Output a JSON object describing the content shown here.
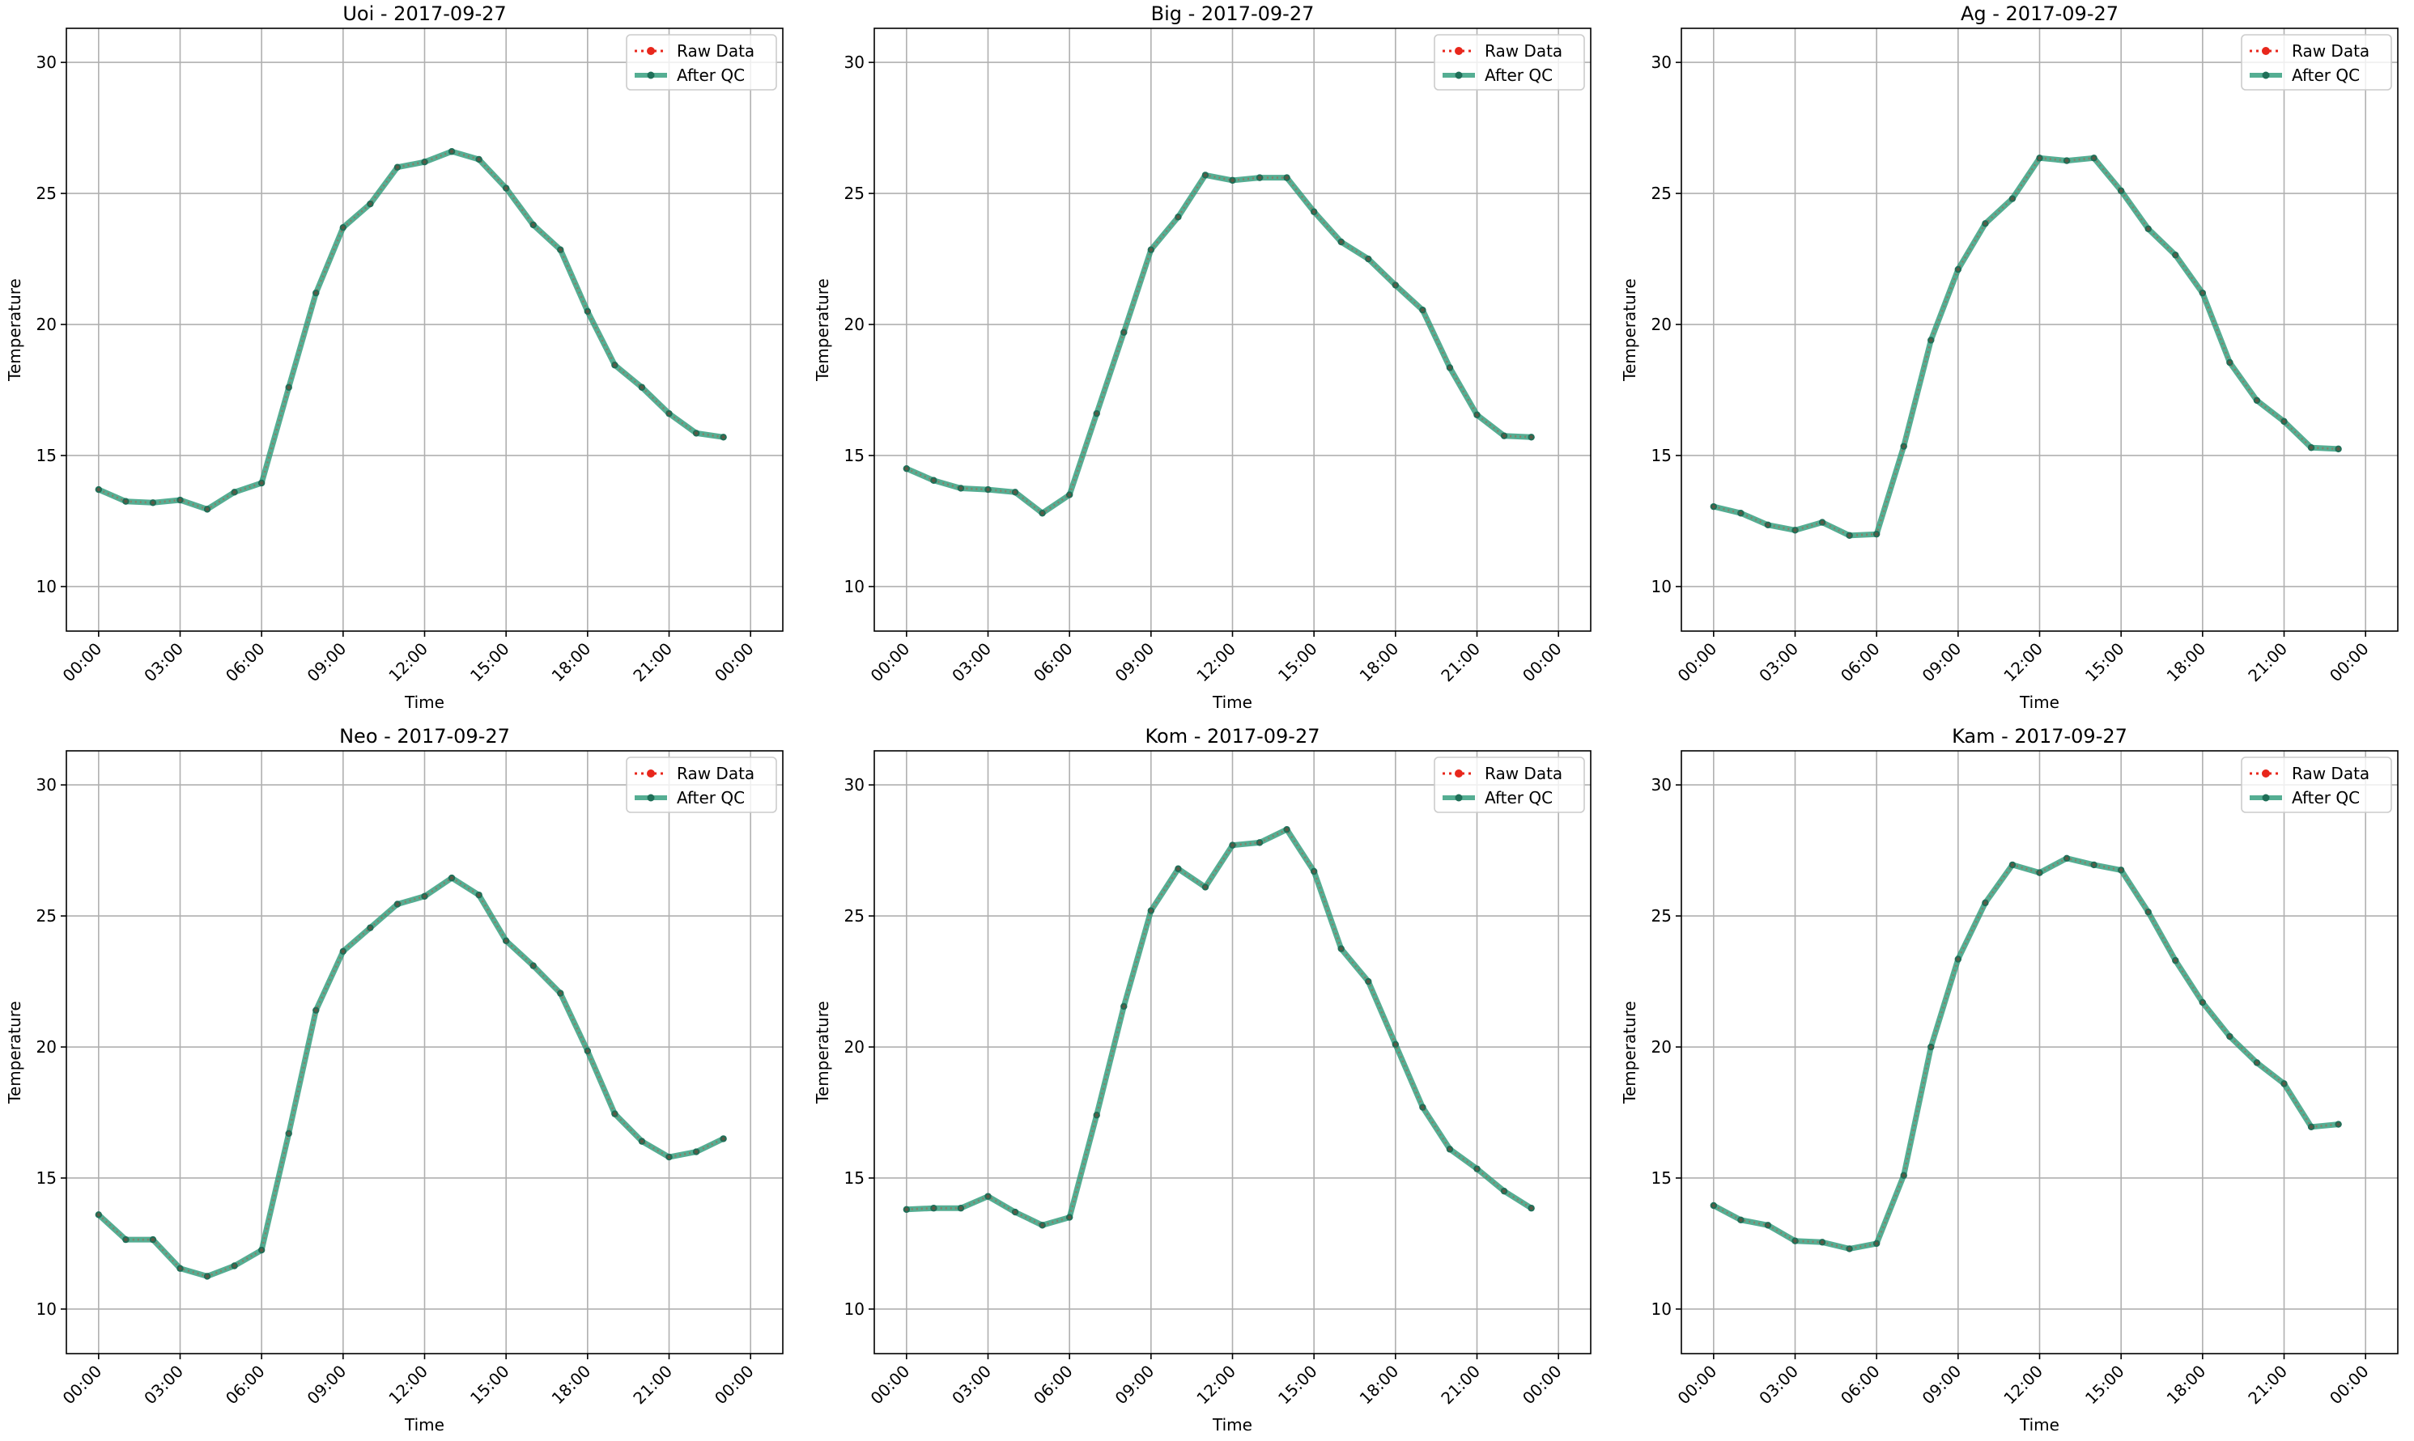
{
  "colors": {
    "raw": "#e8271c",
    "after_qc": "#2a9a78",
    "after_qc_marker": "#1f6f58",
    "grid": "#b0b0b0"
  },
  "chart_data": [
    {
      "type": "line",
      "title": "Uoi - 2017-09-27",
      "xlabel": "Time",
      "ylabel": "Temperature",
      "x_ticks": [
        "00:00",
        "03:00",
        "06:00",
        "09:00",
        "12:00",
        "15:00",
        "18:00",
        "21:00",
        "00:00"
      ],
      "y_ticks": [
        10,
        15,
        20,
        25,
        30
      ],
      "ylim": [
        8.3,
        31.3
      ],
      "grid": true,
      "legend_position": "top-right",
      "x": [
        "00:00",
        "01:00",
        "02:00",
        "03:00",
        "04:00",
        "05:00",
        "06:00",
        "07:00",
        "08:00",
        "09:00",
        "10:00",
        "11:00",
        "12:00",
        "13:00",
        "14:00",
        "15:00",
        "16:00",
        "17:00",
        "18:00",
        "19:00",
        "20:00",
        "21:00",
        "22:00",
        "23:00"
      ],
      "series": [
        {
          "name": "Raw Data",
          "values": [
            13.7,
            13.25,
            13.2,
            13.3,
            12.95,
            13.6,
            13.95,
            17.6,
            21.2,
            23.7,
            24.6,
            26.0,
            26.2,
            26.6,
            26.3,
            25.2,
            23.8,
            22.85,
            20.5,
            18.45,
            17.6,
            16.6,
            15.85,
            15.7
          ]
        },
        {
          "name": "After QC",
          "values": [
            13.7,
            13.25,
            13.2,
            13.3,
            12.95,
            13.6,
            13.95,
            17.6,
            21.2,
            23.7,
            24.6,
            26.0,
            26.2,
            26.6,
            26.3,
            25.2,
            23.8,
            22.85,
            20.5,
            18.45,
            17.6,
            16.6,
            15.85,
            15.7
          ]
        }
      ]
    },
    {
      "type": "line",
      "title": "Big - 2017-09-27",
      "xlabel": "Time",
      "ylabel": "Temperature",
      "x_ticks": [
        "00:00",
        "03:00",
        "06:00",
        "09:00",
        "12:00",
        "15:00",
        "18:00",
        "21:00",
        "00:00"
      ],
      "y_ticks": [
        10,
        15,
        20,
        25,
        30
      ],
      "ylim": [
        8.3,
        31.3
      ],
      "grid": true,
      "legend_position": "top-right",
      "x": [
        "00:00",
        "01:00",
        "02:00",
        "03:00",
        "04:00",
        "05:00",
        "06:00",
        "07:00",
        "08:00",
        "09:00",
        "10:00",
        "11:00",
        "12:00",
        "13:00",
        "14:00",
        "15:00",
        "16:00",
        "17:00",
        "18:00",
        "19:00",
        "20:00",
        "21:00",
        "22:00",
        "23:00"
      ],
      "series": [
        {
          "name": "Raw Data",
          "values": [
            14.5,
            14.05,
            13.75,
            13.7,
            13.6,
            12.8,
            13.5,
            16.6,
            19.7,
            22.85,
            24.1,
            25.7,
            25.5,
            25.6,
            25.6,
            24.3,
            23.15,
            22.5,
            21.5,
            20.55,
            18.35,
            16.55,
            15.75,
            15.7
          ]
        },
        {
          "name": "After QC",
          "values": [
            14.5,
            14.05,
            13.75,
            13.7,
            13.6,
            12.8,
            13.5,
            16.6,
            19.7,
            22.85,
            24.1,
            25.7,
            25.5,
            25.6,
            25.6,
            24.3,
            23.15,
            22.5,
            21.5,
            20.55,
            18.35,
            16.55,
            15.75,
            15.7
          ]
        }
      ]
    },
    {
      "type": "line",
      "title": "Ag - 2017-09-27",
      "xlabel": "Time",
      "ylabel": "Temperature",
      "x_ticks": [
        "00:00",
        "03:00",
        "06:00",
        "09:00",
        "12:00",
        "15:00",
        "18:00",
        "21:00",
        "00:00"
      ],
      "y_ticks": [
        10,
        15,
        20,
        25,
        30
      ],
      "ylim": [
        8.3,
        31.3
      ],
      "grid": true,
      "legend_position": "top-right",
      "x": [
        "00:00",
        "01:00",
        "02:00",
        "03:00",
        "04:00",
        "05:00",
        "06:00",
        "07:00",
        "08:00",
        "09:00",
        "10:00",
        "11:00",
        "12:00",
        "13:00",
        "14:00",
        "15:00",
        "16:00",
        "17:00",
        "18:00",
        "19:00",
        "20:00",
        "21:00",
        "22:00",
        "23:00"
      ],
      "series": [
        {
          "name": "Raw Data",
          "values": [
            13.05,
            12.8,
            12.35,
            12.15,
            12.45,
            11.95,
            12.0,
            15.35,
            19.4,
            22.1,
            23.85,
            24.8,
            26.35,
            26.25,
            26.35,
            25.1,
            23.65,
            22.65,
            21.2,
            18.55,
            17.1,
            16.3,
            15.3,
            15.25
          ]
        },
        {
          "name": "After QC",
          "values": [
            13.05,
            12.8,
            12.35,
            12.15,
            12.45,
            11.95,
            12.0,
            15.35,
            19.4,
            22.1,
            23.85,
            24.8,
            26.35,
            26.25,
            26.35,
            25.1,
            23.65,
            22.65,
            21.2,
            18.55,
            17.1,
            16.3,
            15.3,
            15.25
          ]
        }
      ]
    },
    {
      "type": "line",
      "title": "Neo - 2017-09-27",
      "xlabel": "Time",
      "ylabel": "Temperature",
      "x_ticks": [
        "00:00",
        "03:00",
        "06:00",
        "09:00",
        "12:00",
        "15:00",
        "18:00",
        "21:00",
        "00:00"
      ],
      "y_ticks": [
        10,
        15,
        20,
        25,
        30
      ],
      "ylim": [
        8.3,
        31.3
      ],
      "grid": true,
      "legend_position": "top-right",
      "x": [
        "00:00",
        "01:00",
        "02:00",
        "03:00",
        "04:00",
        "05:00",
        "06:00",
        "07:00",
        "08:00",
        "09:00",
        "10:00",
        "11:00",
        "12:00",
        "13:00",
        "14:00",
        "15:00",
        "16:00",
        "17:00",
        "18:00",
        "19:00",
        "20:00",
        "21:00",
        "22:00",
        "23:00"
      ],
      "series": [
        {
          "name": "Raw Data",
          "values": [
            13.6,
            12.65,
            12.65,
            11.55,
            11.25,
            11.65,
            12.25,
            16.7,
            21.4,
            23.65,
            24.55,
            25.45,
            25.75,
            26.45,
            25.8,
            24.05,
            23.1,
            22.05,
            19.85,
            17.45,
            16.4,
            15.8,
            16.0,
            16.5
          ]
        },
        {
          "name": "After QC",
          "values": [
            13.6,
            12.65,
            12.65,
            11.55,
            11.25,
            11.65,
            12.25,
            16.7,
            21.4,
            23.65,
            24.55,
            25.45,
            25.75,
            26.45,
            25.8,
            24.05,
            23.1,
            22.05,
            19.85,
            17.45,
            16.4,
            15.8,
            16.0,
            16.5
          ]
        }
      ]
    },
    {
      "type": "line",
      "title": "Kom - 2017-09-27",
      "xlabel": "Time",
      "ylabel": "Temperature",
      "x_ticks": [
        "00:00",
        "03:00",
        "06:00",
        "09:00",
        "12:00",
        "15:00",
        "18:00",
        "21:00",
        "00:00"
      ],
      "y_ticks": [
        10,
        15,
        20,
        25,
        30
      ],
      "ylim": [
        8.3,
        31.3
      ],
      "grid": true,
      "legend_position": "top-right",
      "x": [
        "00:00",
        "01:00",
        "02:00",
        "03:00",
        "04:00",
        "05:00",
        "06:00",
        "07:00",
        "08:00",
        "09:00",
        "10:00",
        "11:00",
        "12:00",
        "13:00",
        "14:00",
        "15:00",
        "16:00",
        "17:00",
        "18:00",
        "19:00",
        "20:00",
        "21:00",
        "22:00",
        "23:00"
      ],
      "series": [
        {
          "name": "Raw Data",
          "values": [
            13.8,
            13.85,
            13.85,
            14.3,
            13.7,
            13.2,
            13.5,
            17.4,
            21.55,
            25.2,
            26.8,
            26.1,
            27.7,
            27.8,
            28.3,
            26.7,
            23.75,
            22.5,
            20.1,
            17.7,
            16.1,
            15.35,
            14.5,
            13.85
          ]
        },
        {
          "name": "After QC",
          "values": [
            13.8,
            13.85,
            13.85,
            14.3,
            13.7,
            13.2,
            13.5,
            17.4,
            21.55,
            25.2,
            26.8,
            26.1,
            27.7,
            27.8,
            28.3,
            26.7,
            23.75,
            22.5,
            20.1,
            17.7,
            16.1,
            15.35,
            14.5,
            13.85
          ]
        }
      ]
    },
    {
      "type": "line",
      "title": "Kam - 2017-09-27",
      "xlabel": "Time",
      "ylabel": "Temperature",
      "x_ticks": [
        "00:00",
        "03:00",
        "06:00",
        "09:00",
        "12:00",
        "15:00",
        "18:00",
        "21:00",
        "00:00"
      ],
      "y_ticks": [
        10,
        15,
        20,
        25,
        30
      ],
      "ylim": [
        8.3,
        31.3
      ],
      "grid": true,
      "legend_position": "top-right",
      "x": [
        "00:00",
        "01:00",
        "02:00",
        "03:00",
        "04:00",
        "05:00",
        "06:00",
        "07:00",
        "08:00",
        "09:00",
        "10:00",
        "11:00",
        "12:00",
        "13:00",
        "14:00",
        "15:00",
        "16:00",
        "17:00",
        "18:00",
        "19:00",
        "20:00",
        "21:00",
        "22:00",
        "23:00"
      ],
      "series": [
        {
          "name": "Raw Data",
          "values": [
            13.95,
            13.4,
            13.2,
            12.6,
            12.55,
            12.3,
            12.5,
            15.1,
            20.0,
            23.35,
            25.5,
            26.95,
            26.65,
            27.2,
            26.95,
            26.75,
            25.15,
            23.3,
            21.7,
            20.4,
            19.4,
            18.6,
            16.95,
            17.05
          ]
        },
        {
          "name": "After QC",
          "values": [
            13.95,
            13.4,
            13.2,
            12.6,
            12.55,
            12.3,
            12.5,
            15.1,
            20.0,
            23.35,
            25.5,
            26.95,
            26.65,
            27.2,
            26.95,
            26.75,
            25.15,
            23.3,
            21.7,
            20.4,
            19.4,
            18.6,
            16.95,
            17.05
          ]
        }
      ]
    }
  ]
}
